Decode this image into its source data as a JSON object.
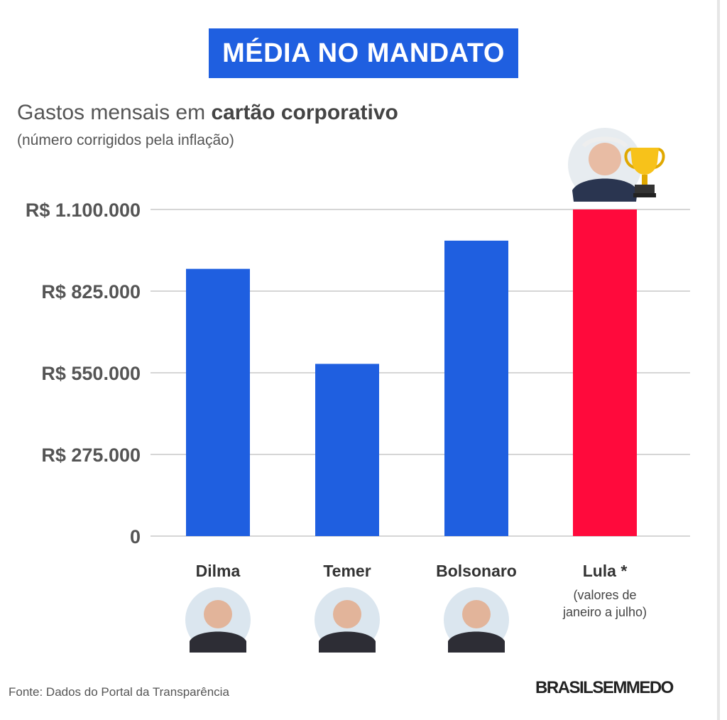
{
  "header": {
    "title": "MÉDIA NO MANDATO",
    "subtitle_prefix": "Gastos mensais em ",
    "subtitle_bold": "cartão corporativo",
    "note": "(número corrigidos pela inflação)"
  },
  "footer": {
    "source": "Fonte: Dados do Portal da Transparência",
    "brand": "BRASILSEMMEDO"
  },
  "colors": {
    "bar_default": "#1f5fe0",
    "bar_highlight": "#ff0a3c",
    "title_bg": "#1f5fe0"
  },
  "icons": {
    "trophy": "trophy-icon"
  },
  "chart_data": {
    "type": "bar",
    "title": "MÉDIA NO MANDATO",
    "subtitle": "Gastos mensais em cartão corporativo",
    "categories": [
      "Dilma",
      "Temer",
      "Bolsonaro",
      "Lula *"
    ],
    "values": [
      900000,
      580000,
      995000,
      1100000
    ],
    "y_ticks": [
      "0",
      "R$ 275.000",
      "R$ 550.000",
      "R$ 825.000",
      "R$ 1.100.000"
    ],
    "ylim": [
      0,
      1100000
    ],
    "grid": true,
    "highlight_index": 3,
    "category_note": [
      "(valores de",
      "janeiro a julho)"
    ]
  }
}
